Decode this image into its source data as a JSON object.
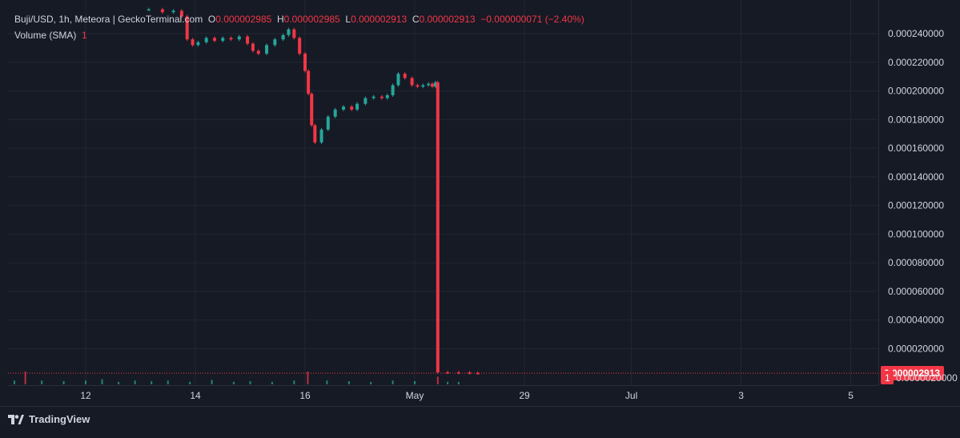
{
  "header": {
    "symbol": "Buji/USD, 1h, Meteora | GeckoTerminal.com",
    "o_label": "O",
    "o_value": "0.000002985",
    "h_label": "H",
    "h_value": "0.000002985",
    "l_label": "L",
    "l_value": "0.000002913",
    "c_label": "C",
    "c_value": "0.000002913",
    "change": "−0.000000071 (−2.40%)",
    "volume_label": "Volume (SMA)",
    "volume_value": "1"
  },
  "brand": {
    "name": "TradingView"
  },
  "colors": {
    "background": "#161a25",
    "up": "#26a69a",
    "down": "#f23645",
    "grid": "#232733",
    "text": "#d1d4dc"
  },
  "chart_data": {
    "type": "candlestick",
    "title": "Buji/USD, 1h, Meteora | GeckoTerminal.com",
    "y_ticks": [
      "0.000240000",
      "0.000220000",
      "0.000200000",
      "0.000180000",
      "0.000160000",
      "0.000140000",
      "0.000120000",
      "0.000100000",
      "0.000080000",
      "0.000060000",
      "0.000040000",
      "0.000020000"
    ],
    "y_tick_values": [
      0.00024,
      0.00022,
      0.0002,
      0.00018,
      0.00016,
      0.00014,
      0.00012,
      0.0001,
      8e-05,
      6e-05,
      4e-05,
      2e-05
    ],
    "ylim": [
      -5.5e-06,
      0.0002635
    ],
    "x_ticks": [
      {
        "label": "12",
        "day": 12.0
      },
      {
        "label": "14",
        "day": 14.0
      },
      {
        "label": "16",
        "day": 16.0
      },
      {
        "label": "May",
        "day": 18.0
      },
      {
        "label": "29",
        "day": 20.0
      },
      {
        "label": "Jul",
        "day": 21.95
      },
      {
        "label": "3",
        "day": 23.95
      },
      {
        "label": "5",
        "day": 25.95
      }
    ],
    "xlim": [
      10.5,
      26.2
    ],
    "price_series": [
      {
        "day": 13.15,
        "price": 0.000257
      },
      {
        "day": 13.4,
        "price": 0.000255
      },
      {
        "day": 13.6,
        "price": 0.000256
      },
      {
        "day": 13.75,
        "price": 0.000252
      },
      {
        "day": 13.85,
        "price": 0.000236
      },
      {
        "day": 13.95,
        "price": 0.000232
      },
      {
        "day": 14.05,
        "price": 0.000234
      },
      {
        "day": 14.2,
        "price": 0.000237
      },
      {
        "day": 14.35,
        "price": 0.000235
      },
      {
        "day": 14.5,
        "price": 0.000237
      },
      {
        "day": 14.65,
        "price": 0.000236
      },
      {
        "day": 14.8,
        "price": 0.000238
      },
      {
        "day": 14.95,
        "price": 0.000233
      },
      {
        "day": 15.05,
        "price": 0.000228
      },
      {
        "day": 15.15,
        "price": 0.000226
      },
      {
        "day": 15.3,
        "price": 0.000232
      },
      {
        "day": 15.45,
        "price": 0.000236
      },
      {
        "day": 15.6,
        "price": 0.000239
      },
      {
        "day": 15.7,
        "price": 0.000243
      },
      {
        "day": 15.8,
        "price": 0.000237
      },
      {
        "day": 15.9,
        "price": 0.000226
      },
      {
        "day": 16.0,
        "price": 0.000214
      },
      {
        "day": 16.06,
        "price": 0.000198
      },
      {
        "day": 16.12,
        "price": 0.000176
      },
      {
        "day": 16.18,
        "price": 0.000164
      },
      {
        "day": 16.3,
        "price": 0.000173
      },
      {
        "day": 16.42,
        "price": 0.000182
      },
      {
        "day": 16.55,
        "price": 0.000187
      },
      {
        "day": 16.7,
        "price": 0.000189
      },
      {
        "day": 16.85,
        "price": 0.000187
      },
      {
        "day": 16.95,
        "price": 0.000191
      },
      {
        "day": 17.1,
        "price": 0.000195
      },
      {
        "day": 17.25,
        "price": 0.000196
      },
      {
        "day": 17.4,
        "price": 0.000195
      },
      {
        "day": 17.5,
        "price": 0.000197
      },
      {
        "day": 17.6,
        "price": 0.000204
      },
      {
        "day": 17.7,
        "price": 0.000212
      },
      {
        "day": 17.82,
        "price": 0.000209
      },
      {
        "day": 17.95,
        "price": 0.000204
      },
      {
        "day": 18.05,
        "price": 0.000203
      },
      {
        "day": 18.15,
        "price": 0.000204
      },
      {
        "day": 18.25,
        "price": 0.000205
      },
      {
        "day": 18.32,
        "price": 0.000203
      },
      {
        "day": 18.38,
        "price": 0.000206
      },
      {
        "day": 18.42,
        "price": 3.5e-06
      },
      {
        "day": 18.6,
        "price": 3.4e-06
      },
      {
        "day": 18.8,
        "price": 3.3e-06
      },
      {
        "day": 19.0,
        "price": 3e-06
      },
      {
        "day": 19.15,
        "price": 2.913e-06
      }
    ],
    "last_price_label": "0.000002913",
    "volume_badge_label": "1",
    "volume_axis_label": "0.0000020000",
    "volume_series": [
      {
        "day": 10.7,
        "volume": 0.3
      },
      {
        "day": 10.9,
        "volume": 1.0
      },
      {
        "day": 11.2,
        "volume": 0.3
      },
      {
        "day": 11.6,
        "volume": 0.25
      },
      {
        "day": 12.0,
        "volume": 0.3
      },
      {
        "day": 12.3,
        "volume": 0.4
      },
      {
        "day": 12.6,
        "volume": 0.2
      },
      {
        "day": 12.9,
        "volume": 0.3
      },
      {
        "day": 13.2,
        "volume": 0.25
      },
      {
        "day": 13.5,
        "volume": 0.3
      },
      {
        "day": 13.9,
        "volume": 0.2
      },
      {
        "day": 14.3,
        "volume": 0.35
      },
      {
        "day": 14.7,
        "volume": 0.2
      },
      {
        "day": 15.0,
        "volume": 0.25
      },
      {
        "day": 15.4,
        "volume": 0.2
      },
      {
        "day": 15.8,
        "volume": 0.3
      },
      {
        "day": 16.05,
        "volume": 1.0
      },
      {
        "day": 16.4,
        "volume": 0.3
      },
      {
        "day": 16.8,
        "volume": 0.25
      },
      {
        "day": 17.2,
        "volume": 0.2
      },
      {
        "day": 17.6,
        "volume": 0.3
      },
      {
        "day": 18.0,
        "volume": 0.25
      },
      {
        "day": 18.42,
        "volume": 0.6
      },
      {
        "day": 18.6,
        "volume": 0.2
      },
      {
        "day": 18.8,
        "volume": 0.2
      }
    ],
    "grid": true
  }
}
